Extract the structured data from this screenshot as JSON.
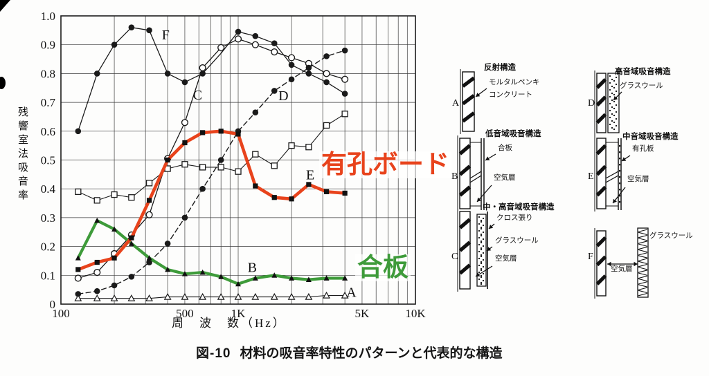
{
  "figure": {
    "caption_tag": "図-10",
    "caption_text": "材料の吸音率特性のパターンと代表的な構造"
  },
  "chart_data": {
    "type": "line",
    "title": "",
    "xlabel": "周　波　数（Hz）",
    "ylabel": "残響室法吸音率",
    "x_scale": "log",
    "x_range": [
      100,
      10000
    ],
    "y_range": [
      0,
      1.0
    ],
    "grid": true,
    "x_ticks": [
      {
        "f": 100,
        "label": "100"
      },
      {
        "f": 500,
        "label": "500"
      },
      {
        "f": 1000,
        "label": "1K"
      },
      {
        "f": 5000,
        "label": "5K"
      },
      {
        "f": 10000,
        "label": "10K"
      }
    ],
    "y_tick_labels": [
      "0",
      "0.1",
      "0.2",
      "0.3",
      "0.4",
      "0.5",
      "0.6",
      "0.7",
      "0.8",
      "0.9",
      "1.0"
    ],
    "frequencies": [
      125,
      160,
      200,
      250,
      315,
      400,
      500,
      630,
      800,
      1000,
      1250,
      1600,
      2000,
      2500,
      3150,
      4000
    ],
    "series": [
      {
        "name": "squares-unlabeled",
        "label": "",
        "line": "solid",
        "width": 1.1,
        "color": "#1a1a1a",
        "marker": "square-open",
        "values": [
          0.39,
          0.36,
          0.38,
          0.37,
          0.42,
          0.47,
          0.485,
          0.475,
          0.475,
          0.46,
          0.52,
          0.48,
          0.55,
          0.545,
          0.62,
          0.66
        ]
      },
      {
        "name": "C",
        "label": "C",
        "line": "solid",
        "width": 1.3,
        "color": "#1a1a1a",
        "marker": "circle-open",
        "values": [
          0.09,
          0.11,
          0.175,
          0.24,
          0.31,
          0.505,
          0.63,
          0.82,
          0.89,
          0.92,
          0.9,
          0.875,
          0.855,
          0.835,
          0.8,
          0.78
        ]
      },
      {
        "name": "D",
        "label": "D",
        "line": "dashed",
        "width": 1.4,
        "color": "#1a1a1a",
        "marker": "circle-filled",
        "values": [
          0.035,
          0.045,
          0.065,
          0.095,
          0.145,
          0.21,
          0.3,
          0.4,
          0.5,
          0.6,
          0.665,
          0.74,
          0.78,
          0.82,
          0.86,
          0.88
        ]
      },
      {
        "name": "F",
        "label": "F",
        "line": "solid",
        "width": 1.3,
        "color": "#1a1a1a",
        "marker": "circle-filled",
        "hidden_markers": [
          8
        ],
        "values": [
          0.6,
          0.8,
          0.9,
          0.96,
          0.95,
          0.8,
          0.77,
          0.8,
          0.87,
          0.945,
          0.93,
          0.905,
          0.83,
          0.8,
          0.77,
          0.73
        ]
      },
      {
        "name": "A",
        "label": "A",
        "line": "solid",
        "width": 1.1,
        "color": "#1a1a1a",
        "marker": "triangle-open",
        "values": [
          0.02,
          0.02,
          0.02,
          0.02,
          0.02,
          0.025,
          0.025,
          0.025,
          0.025,
          0.025,
          0.025,
          0.025,
          0.025,
          0.025,
          0.03,
          0.03
        ]
      },
      {
        "name": "B",
        "label": "B",
        "line": "solid",
        "width": 4.2,
        "color": "#3e9b3a",
        "marker": "triangle-filled",
        "marker_color": "#111111",
        "values": [
          0.16,
          0.29,
          0.26,
          0.21,
          0.16,
          0.12,
          0.105,
          0.11,
          0.095,
          0.07,
          0.09,
          0.1,
          0.09,
          0.085,
          0.09,
          0.09
        ]
      },
      {
        "name": "E",
        "label": "E",
        "line": "solid",
        "width": 4.6,
        "color": "#e8431c",
        "marker": "square-filled",
        "marker_color": "#111111",
        "values": [
          0.12,
          0.145,
          0.16,
          0.23,
          0.36,
          0.5,
          0.56,
          0.595,
          0.6,
          0.59,
          0.41,
          0.37,
          0.365,
          0.415,
          0.39,
          0.385
        ]
      }
    ],
    "curve_labels": [
      {
        "text": "F",
        "f": 390,
        "v": 0.935
      },
      {
        "text": "C",
        "f": 590,
        "v": 0.727
      },
      {
        "text": "D",
        "f": 1800,
        "v": 0.724
      },
      {
        "text": "E",
        "f": 2550,
        "v": 0.45
      },
      {
        "text": "B",
        "f": 1200,
        "v": 0.128
      },
      {
        "text": "A",
        "f": 4350,
        "v": 0.042
      }
    ],
    "annotations": [
      {
        "text": "有孔ボード",
        "color": "#e8431c",
        "series": "E"
      },
      {
        "text": "合板",
        "color": "#3e9b3a",
        "series": "B"
      }
    ]
  },
  "diagrams": [
    {
      "letter": "A",
      "title": "反射構造",
      "labels": [
        "モルタルペンキ",
        "コンクリート"
      ]
    },
    {
      "letter": "B",
      "title": "低音域吸音構造",
      "labels": [
        "合板",
        "空気層"
      ]
    },
    {
      "letter": "C",
      "title": "中・高音域吸音構造",
      "labels": [
        "クロス張り",
        "グラスウール",
        "空気層"
      ]
    },
    {
      "letter": "D",
      "title": "高音域吸音構造",
      "labels": [
        "グラスウール"
      ]
    },
    {
      "letter": "E",
      "title": "中音域吸音構造",
      "labels": [
        "有孔板",
        "空気層"
      ]
    },
    {
      "letter": "F",
      "title": "",
      "labels": [
        "グラスウール",
        "空気層"
      ]
    }
  ]
}
